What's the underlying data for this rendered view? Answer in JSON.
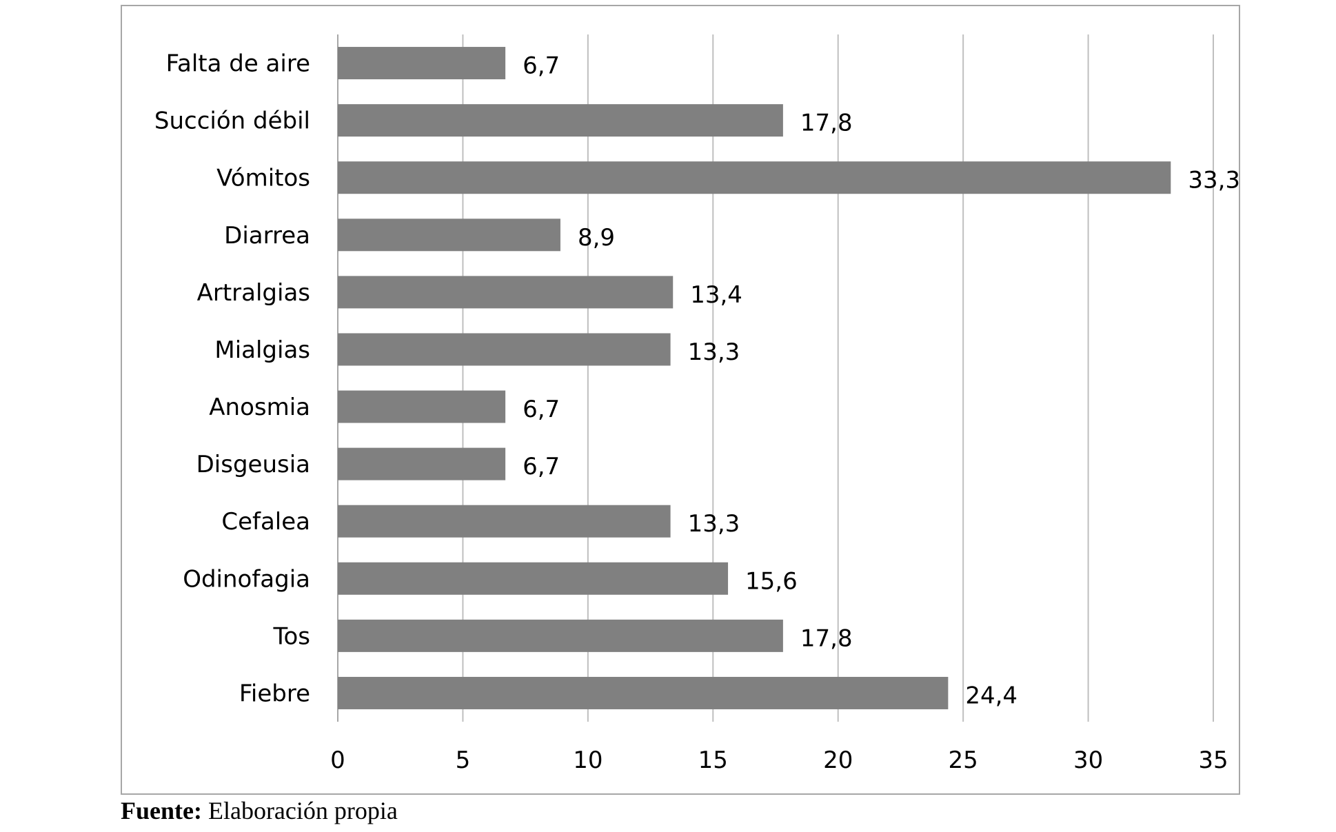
{
  "chart_data": {
    "type": "bar",
    "orientation": "horizontal",
    "categories": [
      "Falta de aire",
      "Succión débil",
      "Vómitos",
      "Diarrea",
      "Artralgias",
      "Mialgias",
      "Anosmia",
      "Disgeusia",
      "Cefalea",
      "Odinofagia",
      "Tos",
      "Fiebre"
    ],
    "values": [
      6.7,
      17.8,
      33.3,
      8.9,
      13.4,
      13.3,
      6.7,
      6.7,
      13.3,
      15.6,
      17.8,
      24.4
    ],
    "value_labels": [
      "6,7",
      "17,8",
      "33,3",
      "8,9",
      "13,4",
      "13,3",
      "6,7",
      "6,7",
      "13,3",
      "15,6",
      "17,8",
      "24,4"
    ],
    "x_ticks": [
      "0",
      "5",
      "10",
      "15",
      "20",
      "25",
      "30",
      "35"
    ],
    "xlim": [
      0,
      35
    ],
    "title": "",
    "xlabel": "",
    "ylabel": "",
    "grid": "vertical",
    "legend": "none",
    "colors": {
      "bar": "#808080",
      "grid": "#bfbfbf",
      "axis": "#a6a6a6",
      "frame": "#a6a6a6"
    }
  },
  "source": {
    "label": "Fuente:",
    "text": " Elaboración propia"
  }
}
